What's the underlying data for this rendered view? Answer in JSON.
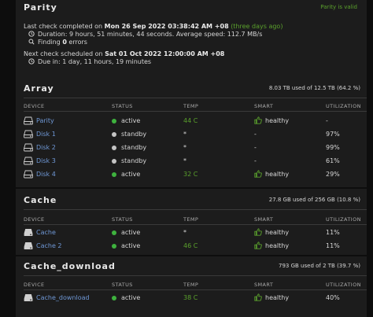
{
  "parity": {
    "title": "Parity",
    "status": "Parity is valid",
    "last_check_prefix": "Last check completed on ",
    "last_check_date": "Mon 26 Sep 2022 03:38:42 AM +08",
    "last_check_ago": "(three days ago)",
    "duration": "Duration: 9 hours, 51 minutes, 44 seconds. Average speed: 112.7 MB/s",
    "finding_prefix": "Finding ",
    "finding_count": "0",
    "finding_suffix": " errors",
    "next_check_prefix": "Next check scheduled on ",
    "next_check_date": "Sat 01 Oct 2022 12:00:00 AM +08",
    "due_in": "Due in: 1 day, 11 hours, 19 minutes"
  },
  "headers": {
    "device": "DEVICE",
    "status": "STATUS",
    "temp": "TEMP",
    "smart": "SMART",
    "utilization": "UTILIZATION"
  },
  "array": {
    "title": "Array",
    "usage": "8.03 TB used of 12.5 TB (64.2 %)",
    "rows": [
      {
        "device": "Parity",
        "status": "active",
        "temp": "44 C",
        "smart": "healthy",
        "util": "-"
      },
      {
        "device": "Disk 1",
        "status": "standby",
        "temp": "*",
        "smart": "-",
        "util": "97%"
      },
      {
        "device": "Disk 2",
        "status": "standby",
        "temp": "*",
        "smart": "-",
        "util": "99%"
      },
      {
        "device": "Disk 3",
        "status": "standby",
        "temp": "*",
        "smart": "-",
        "util": "61%"
      },
      {
        "device": "Disk 4",
        "status": "active",
        "temp": "32 C",
        "smart": "healthy",
        "util": "29%"
      }
    ]
  },
  "cache": {
    "title": "Cache",
    "usage": "27.8 GB used of 256 GB (10.8 %)",
    "rows": [
      {
        "device": "Cache",
        "status": "active",
        "temp": "*",
        "smart": "healthy",
        "util": "11%"
      },
      {
        "device": "Cache 2",
        "status": "active",
        "temp": "46 C",
        "smart": "healthy",
        "util": "11%"
      }
    ]
  },
  "cache_download": {
    "title": "Cache_download",
    "usage": "793 GB used of 2 TB (39.7 %)",
    "rows": [
      {
        "device": "Cache_download",
        "status": "active",
        "temp": "38 C",
        "smart": "healthy",
        "util": "40%"
      }
    ]
  },
  "colors": {
    "accent_green": "#5aa02c",
    "link_blue": "#6f98d6",
    "active_dot": "#3eb23e",
    "standby_dot": "#c4c4c4"
  }
}
